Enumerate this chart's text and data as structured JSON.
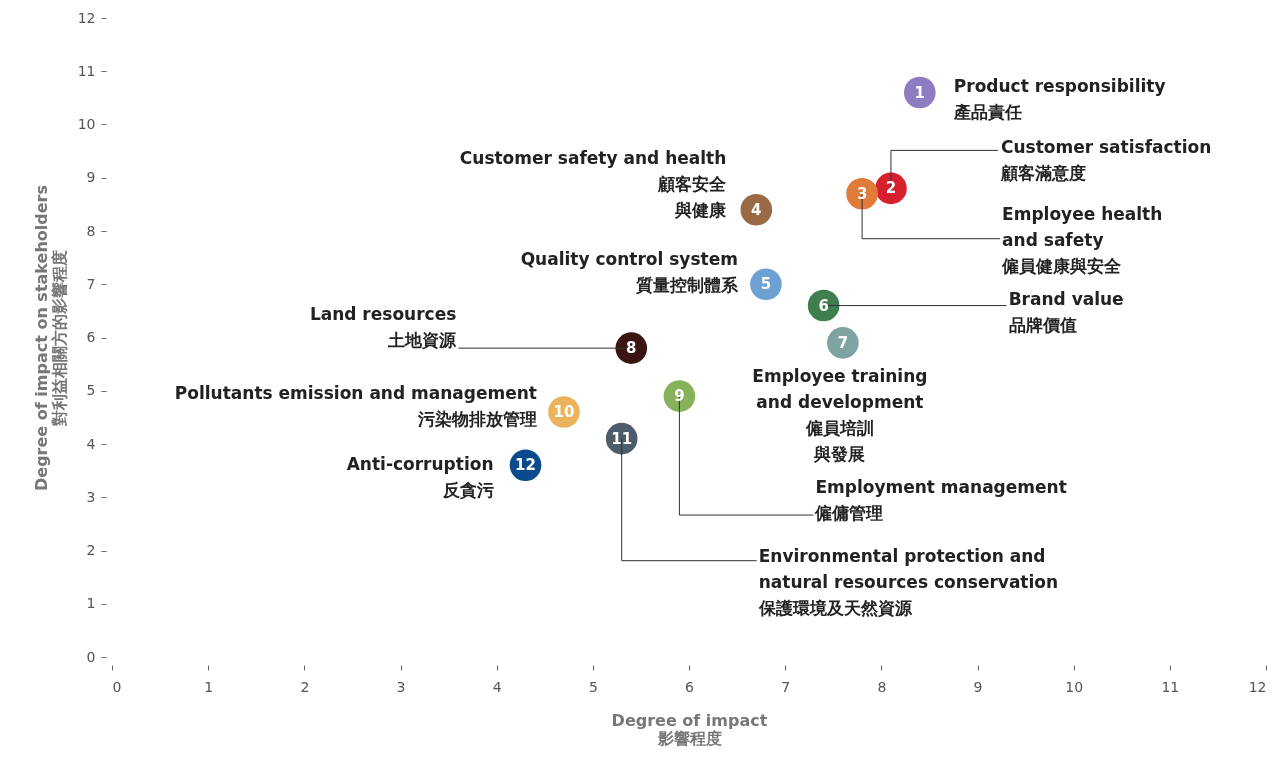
{
  "chart_data": {
    "type": "scatter",
    "xlabel": "Degree of impact\n影響程度",
    "ylabel": "Degree of impact on stakeholders\n對利益相關方的影響程度",
    "xlim": [
      0,
      12
    ],
    "ylim": [
      0,
      12
    ],
    "xticks": [
      0,
      1,
      2,
      3,
      4,
      5,
      6,
      7,
      8,
      9,
      10,
      11,
      12
    ],
    "yticks": [
      0,
      1,
      2,
      3,
      4,
      5,
      6,
      7,
      8,
      9,
      10,
      11,
      12
    ],
    "grid": false,
    "marker": "circle",
    "series": [
      {
        "name": "1",
        "color": "#8e7cc3",
        "x": [
          8.4
        ],
        "values": [
          10.6
        ]
      },
      {
        "name": "2",
        "color": "#d7202e",
        "x": [
          8.1
        ],
        "values": [
          8.8
        ]
      },
      {
        "name": "3",
        "color": "#e07b39",
        "x": [
          7.8
        ],
        "values": [
          8.7
        ]
      },
      {
        "name": "4",
        "color": "#9a6a45",
        "x": [
          6.7
        ],
        "values": [
          8.4
        ]
      },
      {
        "name": "5",
        "color": "#6ea1d3",
        "x": [
          6.8
        ],
        "values": [
          7.0
        ]
      },
      {
        "name": "6",
        "color": "#3f7f4f",
        "x": [
          7.4
        ],
        "values": [
          6.6
        ]
      },
      {
        "name": "7",
        "color": "#7fa3a3",
        "x": [
          7.6
        ],
        "values": [
          5.9
        ]
      },
      {
        "name": "8",
        "color": "#3a1410",
        "x": [
          5.4
        ],
        "values": [
          5.8
        ]
      },
      {
        "name": "9",
        "color": "#86b35a",
        "x": [
          5.9
        ],
        "values": [
          4.9
        ]
      },
      {
        "name": "10",
        "color": "#eab35c",
        "x": [
          4.7
        ],
        "values": [
          4.6
        ]
      },
      {
        "name": "11",
        "color": "#4d5d6b",
        "x": [
          5.3
        ],
        "values": [
          4.1
        ]
      },
      {
        "name": "12",
        "color": "#0b4a8c",
        "x": [
          4.3
        ],
        "values": [
          3.6
        ]
      }
    ],
    "annotations": [
      {
        "text": "Product responsibility\n產品責任",
        "x": 8.4,
        "y": 10.6
      },
      {
        "text": "Customer satisfaction\n顧客滿意度",
        "x": 8.1,
        "y": 8.8
      },
      {
        "text": "Employee health\nand safety\n僱員健康與安全",
        "x": 7.8,
        "y": 8.7
      },
      {
        "text": "Customer safety and health\n顧客安全與健康",
        "x": 6.7,
        "y": 8.4
      },
      {
        "text": "Quality control system\n質量控制體系",
        "x": 6.8,
        "y": 7.0
      },
      {
        "text": "Brand value\n品牌價值",
        "x": 7.4,
        "y": 6.6
      },
      {
        "text": "Employee training\nand development\n僱員培訓與發展",
        "x": 7.6,
        "y": 5.9
      },
      {
        "text": "Land resources\n土地資源",
        "x": 5.4,
        "y": 5.8
      },
      {
        "text": "Employment management\n僱傭管理",
        "x": 5.9,
        "y": 4.9
      },
      {
        "text": "Pollutants emission and management\n污染物排放管理",
        "x": 4.7,
        "y": 4.6
      },
      {
        "text": "Environmental protection and\nnatural resources conservation\n保護環境及天然資源",
        "x": 5.3,
        "y": 4.1
      },
      {
        "text": "Anti-corruption\n反貪污",
        "x": 4.3,
        "y": 3.6
      }
    ]
  }
}
